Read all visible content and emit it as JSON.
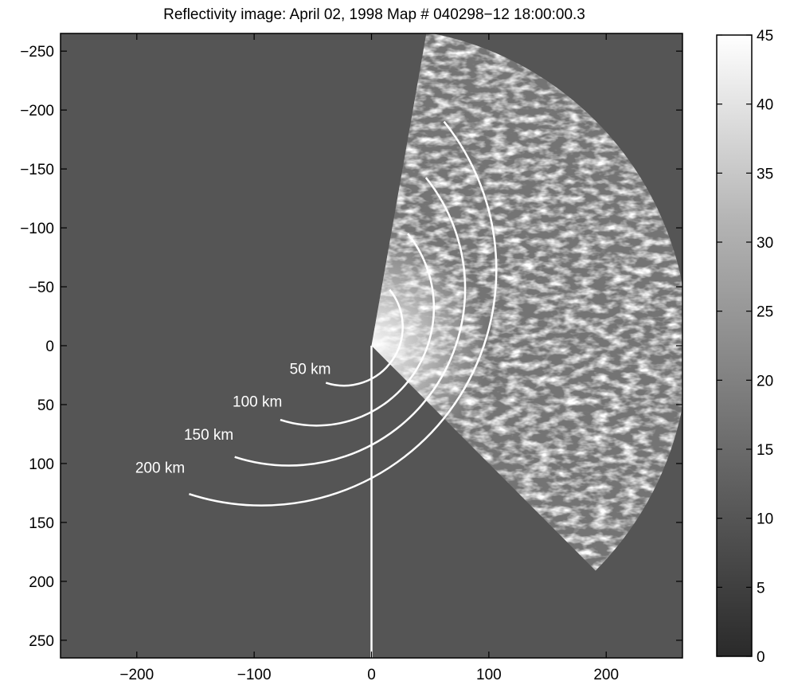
{
  "chart_data": {
    "type": "heatmap",
    "title": "Reflectivity image: April 02, 1998  Map # 040298−12  18:00:00.3",
    "xlabel": "",
    "ylabel": "",
    "xlim": [
      -265,
      265
    ],
    "ylim": [
      -265,
      265
    ],
    "y_axis_reversed": true,
    "x_ticks": [
      -200,
      -100,
      0,
      100,
      200
    ],
    "x_tick_labels": [
      "−200",
      "−100",
      "0",
      "100",
      "200"
    ],
    "y_ticks": [
      -250,
      -200,
      -150,
      -100,
      -50,
      0,
      50,
      100,
      150,
      200,
      250
    ],
    "y_tick_labels": [
      "−250",
      "−200",
      "−150",
      "−100",
      "−50",
      "0",
      "50",
      "100",
      "150",
      "200",
      "250"
    ],
    "grid": false,
    "background_color": "#555555",
    "radar_origin": [
      0,
      0
    ],
    "range_rings": [
      {
        "radius": 50,
        "label": "50 km"
      },
      {
        "radius": 100,
        "label": "100 km"
      },
      {
        "radius": 150,
        "label": "150 km"
      },
      {
        "radius": 200,
        "label": "200 km"
      }
    ],
    "colorbar": {
      "min": 0,
      "max": 45,
      "ticks": [
        0,
        5,
        10,
        15,
        20,
        25,
        30,
        35,
        40,
        45
      ],
      "tick_labels": [
        "0",
        "5",
        "10",
        "15",
        "20",
        "25",
        "30",
        "35",
        "40",
        "45"
      ],
      "colormap": "gray"
    },
    "coverage_sector": {
      "radius": 270,
      "from_angle_deg": -80,
      "to_angle_deg": 45
    }
  }
}
